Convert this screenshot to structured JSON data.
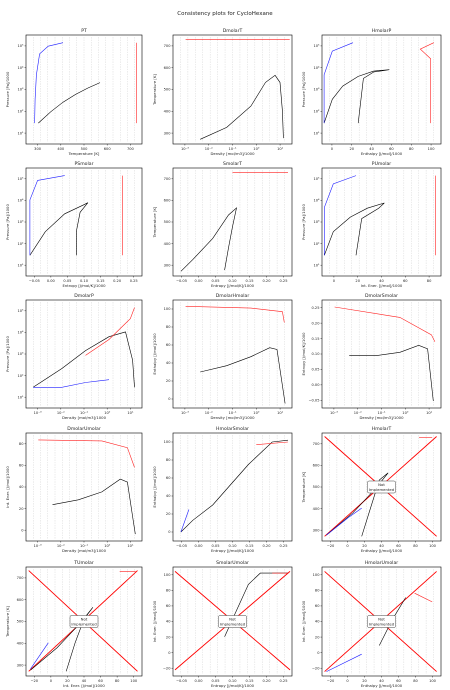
{
  "figure": {
    "title": "Consistency plots for CycloHexane"
  },
  "colors": {
    "vapor": "#1f1fff",
    "liquid": "#ff2020",
    "twophase": "#000000",
    "grid_lines": "#222222",
    "diag": "#ff0000"
  },
  "not_implemented_label": [
    "Not",
    "Implemented"
  ],
  "chart_data": [
    {
      "id": "PT",
      "type": "line",
      "title": "PT",
      "xlabel": "Temperature [K]",
      "ylabel": "Pressure [Pa]/1000",
      "xlim": [
        250,
        720
      ],
      "ylim": [
        0.05,
        300000
      ],
      "xscale": "linear",
      "yscale": "log",
      "xticks": [
        "300",
        "400",
        "500",
        "600",
        "700"
      ],
      "yticks": [
        "10¹",
        "10²",
        "10³",
        "10⁴",
        "10⁵"
      ]
    },
    {
      "id": "DmolarT",
      "type": "line",
      "title": "DmolarT",
      "xlabel": "Density [mol/m3]/1000",
      "ylabel": "Temperature [K]",
      "xlim": [
        0.0003,
        25
      ],
      "ylim": [
        260,
        720
      ],
      "xscale": "log",
      "yscale": "linear",
      "xticks": [
        "10⁻³",
        "10⁻²",
        "10⁻¹",
        "10⁰",
        "10¹"
      ],
      "yticks": [
        "300",
        "400",
        "500",
        "600",
        "700"
      ]
    },
    {
      "id": "HmolarP",
      "type": "line",
      "title": "HmolarP",
      "xlabel": "Enthalpy [J/mol]/1000",
      "ylabel": "Pressure [Pa]/1000",
      "xlim": [
        -10,
        105
      ],
      "ylim": [
        0.05,
        300000
      ],
      "xscale": "linear",
      "yscale": "log",
      "xticks": [
        "0",
        "20",
        "40",
        "60",
        "80",
        "100"
      ],
      "yticks": [
        "10¹",
        "10²",
        "10³",
        "10⁴",
        "10⁵"
      ]
    },
    {
      "id": "PSmolar",
      "type": "line",
      "title": "PSmolar",
      "xlabel": "Entropy [J/mol/K]/1000",
      "ylabel": "Pressure [Pa]/1000",
      "xlim": [
        -0.05,
        0.25
      ],
      "ylim": [
        0.05,
        300000
      ],
      "xscale": "linear",
      "yscale": "log",
      "xticks": [
        "−0.05",
        "0.00",
        "0.05",
        "0.10",
        "0.15",
        "0.20",
        "0.25"
      ],
      "yticks": [
        "10¹",
        "10²",
        "10³",
        "10⁴",
        "10⁵"
      ]
    },
    {
      "id": "SmolarT",
      "type": "line",
      "title": "SmolarT",
      "xlabel": "Entropy [J/mol/K]/1000",
      "ylabel": "Temperature [K]",
      "xlim": [
        -0.05,
        0.25
      ],
      "ylim": [
        260,
        720
      ],
      "xscale": "linear",
      "yscale": "linear",
      "xticks": [
        "−0.05",
        "0.00",
        "0.05",
        "0.10",
        "0.15",
        "0.20",
        "0.25"
      ],
      "yticks": [
        "300",
        "400",
        "500",
        "600",
        "700"
      ]
    },
    {
      "id": "PUmolar",
      "type": "line",
      "title": "PUmolar",
      "xlabel": "Int. Ener. [J/mol]/1000",
      "ylabel": "Pressure [Pa]/1000",
      "xlim": [
        -10,
        95
      ],
      "ylim": [
        0.05,
        300000
      ],
      "xscale": "linear",
      "yscale": "log",
      "xticks": [
        "0",
        "20",
        "40",
        "60",
        "80"
      ],
      "yticks": [
        "10¹",
        "10²",
        "10³",
        "10⁴",
        "10⁵"
      ]
    },
    {
      "id": "DmolarP",
      "type": "line",
      "title": "DmolarP",
      "xlabel": "Density [mol/m3]/1000",
      "ylabel": "Pressure [Pa]/1000",
      "xlim": [
        0.0003,
        25
      ],
      "ylim": [
        0.05,
        300000
      ],
      "xscale": "log",
      "yscale": "log",
      "xticks": [
        "10⁻³",
        "10⁻²",
        "10⁻¹",
        "10⁰",
        "10¹"
      ],
      "yticks": [
        "10¹",
        "10²",
        "10³",
        "10⁴",
        "10⁵"
      ]
    },
    {
      "id": "DmolarHmolar",
      "type": "line",
      "title": "DmolarHmolar",
      "xlabel": "Density [mol/m3]/1000",
      "ylabel": "Enthalpy [J/mol]/1000",
      "xlim": [
        0.0003,
        25
      ],
      "ylim": [
        -15,
        105
      ],
      "xscale": "log",
      "yscale": "linear",
      "xticks": [
        "10⁻³",
        "10⁻²",
        "10⁻¹",
        "10⁰",
        "10¹"
      ],
      "yticks": [
        "0",
        "20",
        "40",
        "60",
        "80",
        "100"
      ]
    },
    {
      "id": "DmolarSmolar",
      "type": "line",
      "title": "DmolarSmolar",
      "xlabel": "Density [mol/m3]/1000",
      "ylabel": "Entropy [J/mol/K]/1000",
      "xlim": [
        0.0003,
        25
      ],
      "ylim": [
        -0.06,
        0.25
      ],
      "xscale": "log",
      "yscale": "linear",
      "xticks": [
        "10⁻³",
        "10⁻²",
        "10⁻¹",
        "10⁰",
        "10¹"
      ],
      "yticks": [
        "−0.05",
        "0.00",
        "0.05",
        "0.10",
        "0.15",
        "0.20",
        "0.25"
      ]
    },
    {
      "id": "DmolarUmolar",
      "type": "line",
      "title": "DmolarUmolar",
      "xlabel": "Density [mol/m3]/1000",
      "ylabel": "Int. Ener. [J/mol]/1000",
      "xlim": [
        0.0003,
        25
      ],
      "ylim": [
        -15,
        95
      ],
      "xscale": "log",
      "yscale": "linear",
      "xticks": [
        "10⁻³",
        "10⁻²",
        "10⁻¹",
        "10⁰",
        "10¹"
      ],
      "yticks": [
        "0",
        "20",
        "40",
        "60",
        "80"
      ]
    },
    {
      "id": "HmolarSmolar",
      "type": "line",
      "title": "HmolarSmolar",
      "xlabel": "Entropy [J/mol/K]/1000",
      "ylabel": "Enthalpy [J/mol]/1000",
      "xlim": [
        -0.05,
        0.25
      ],
      "ylim": [
        -15,
        105
      ],
      "xscale": "linear",
      "yscale": "linear",
      "xticks": [
        "−0.05",
        "0.00",
        "0.05",
        "0.10",
        "0.15",
        "0.20",
        "0.25"
      ],
      "yticks": [
        "0",
        "20",
        "40",
        "60",
        "80",
        "100"
      ]
    },
    {
      "id": "HmolarT",
      "type": "line",
      "title": "HmolarT",
      "xlabel": "Enthalpy [J/mol]/1000",
      "ylabel": "Temperature [K]",
      "xlim": [
        -25,
        110
      ],
      "ylim": [
        260,
        720
      ],
      "xscale": "linear",
      "yscale": "linear",
      "xticks": [
        "−20",
        "0",
        "20",
        "40",
        "60",
        "80",
        "100"
      ],
      "yticks": [
        "300",
        "400",
        "500",
        "600",
        "700"
      ],
      "not_implemented": true
    },
    {
      "id": "TUmolar",
      "type": "line",
      "title": "TUmolar",
      "xlabel": "Int. Ener. [J/mol]/1000",
      "ylabel": "Temperature [K]",
      "xlim": [
        -25,
        105
      ],
      "ylim": [
        260,
        720
      ],
      "xscale": "linear",
      "yscale": "linear",
      "xticks": [
        "−20",
        "0",
        "20",
        "40",
        "60",
        "80",
        "100"
      ],
      "yticks": [
        "300",
        "400",
        "500",
        "600",
        "700"
      ],
      "not_implemented": true
    },
    {
      "id": "SmolarUmolar",
      "type": "line",
      "title": "SmolarUmolar",
      "xlabel": "Entropy [J/mol/K]/1000",
      "ylabel": "Int. Ener. [J/mol]/1000",
      "xlim": [
        -0.05,
        0.25
      ],
      "ylim": [
        -25,
        100
      ],
      "xscale": "linear",
      "yscale": "linear",
      "xticks": [
        "−0.05",
        "0.00",
        "0.05",
        "0.10",
        "0.15",
        "0.20",
        "0.25"
      ],
      "yticks": [
        "−20",
        "0",
        "20",
        "40",
        "60",
        "80",
        "100"
      ],
      "not_implemented": true
    },
    {
      "id": "HmolarUmolar",
      "type": "line",
      "title": "HmolarUmolar",
      "xlabel": "Enthalpy [J/mol]/1000",
      "ylabel": "Int. Ener. [J/mol]/1000",
      "xlim": [
        -25,
        110
      ],
      "ylim": [
        -25,
        100
      ],
      "xscale": "linear",
      "yscale": "linear",
      "xticks": [
        "−20",
        "0",
        "20",
        "40",
        "60",
        "80",
        "100"
      ],
      "yticks": [
        "−20",
        "0",
        "20",
        "40",
        "60",
        "80",
        "100"
      ],
      "not_implemented": true
    }
  ]
}
